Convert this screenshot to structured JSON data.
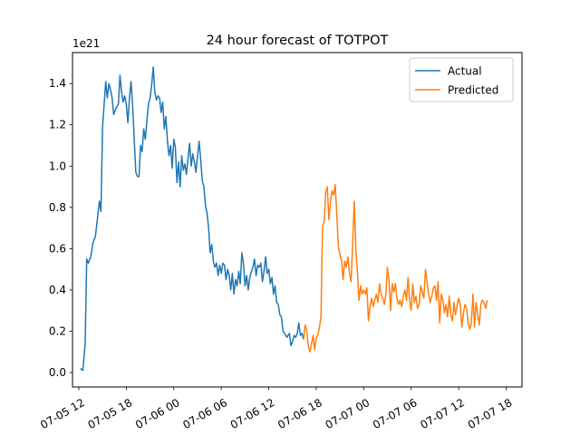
{
  "chart_data": {
    "type": "line",
    "title": "24 hour forecast of TOTPOT",
    "xlabel": "",
    "ylabel": "",
    "y_scale_label": "1e21",
    "x_unit": "hours since 07-05 12",
    "xlim": [
      -0.8,
      56.0
    ],
    "ylim": [
      -0.07,
      1.55
    ],
    "grid": false,
    "legend_position": "top-right",
    "x_ticks": [
      {
        "value": 0,
        "label": "07-05 12"
      },
      {
        "value": 6,
        "label": "07-05 18"
      },
      {
        "value": 12,
        "label": "07-06 00"
      },
      {
        "value": 18,
        "label": "07-06 06"
      },
      {
        "value": 24,
        "label": "07-06 12"
      },
      {
        "value": 30,
        "label": "07-06 18"
      },
      {
        "value": 36,
        "label": "07-07 00"
      },
      {
        "value": 42,
        "label": "07-07 06"
      },
      {
        "value": 48,
        "label": "07-07 12"
      },
      {
        "value": 54,
        "label": "07-07 18"
      }
    ],
    "y_ticks": [
      {
        "value": 0.0,
        "label": "0.0"
      },
      {
        "value": 0.2,
        "label": "0.2"
      },
      {
        "value": 0.4,
        "label": "0.4"
      },
      {
        "value": 0.6,
        "label": "0.6"
      },
      {
        "value": 0.8,
        "label": "0.8"
      },
      {
        "value": 1.0,
        "label": "1.0"
      },
      {
        "value": 1.2,
        "label": "1.2"
      },
      {
        "value": 1.4,
        "label": "1.4"
      }
    ],
    "series": [
      {
        "name": "Actual",
        "color": "#1f77b4",
        "points": [
          [
            0.2,
            0.02
          ],
          [
            0.5,
            0.01
          ],
          [
            0.8,
            0.14
          ],
          [
            1.0,
            0.55
          ],
          [
            1.2,
            0.53
          ],
          [
            1.5,
            0.56
          ],
          [
            1.8,
            0.63
          ],
          [
            2.1,
            0.66
          ],
          [
            2.4,
            0.76
          ],
          [
            2.6,
            0.83
          ],
          [
            2.8,
            0.78
          ],
          [
            3.0,
            1.19
          ],
          [
            3.2,
            1.3
          ],
          [
            3.4,
            1.41
          ],
          [
            3.6,
            1.33
          ],
          [
            3.8,
            1.4
          ],
          [
            4.0,
            1.37
          ],
          [
            4.2,
            1.33
          ],
          [
            4.4,
            1.25
          ],
          [
            4.7,
            1.28
          ],
          [
            5.0,
            1.3
          ],
          [
            5.2,
            1.44
          ],
          [
            5.4,
            1.36
          ],
          [
            5.6,
            1.31
          ],
          [
            5.8,
            1.34
          ],
          [
            6.0,
            1.3
          ],
          [
            6.2,
            1.21
          ],
          [
            6.4,
            1.33
          ],
          [
            6.6,
            1.41
          ],
          [
            6.8,
            1.29
          ],
          [
            7.0,
            1.13
          ],
          [
            7.2,
            0.97
          ],
          [
            7.4,
            0.95
          ],
          [
            7.6,
            0.95
          ],
          [
            7.8,
            1.1
          ],
          [
            8.0,
            1.07
          ],
          [
            8.2,
            1.18
          ],
          [
            8.4,
            1.13
          ],
          [
            8.6,
            1.22
          ],
          [
            8.8,
            1.3
          ],
          [
            9.0,
            1.33
          ],
          [
            9.2,
            1.39
          ],
          [
            9.4,
            1.48
          ],
          [
            9.6,
            1.36
          ],
          [
            9.8,
            1.32
          ],
          [
            10.0,
            1.34
          ],
          [
            10.2,
            1.33
          ],
          [
            10.4,
            1.26
          ],
          [
            10.6,
            1.31
          ],
          [
            10.8,
            1.18
          ],
          [
            11.0,
            1.24
          ],
          [
            11.2,
            1.12
          ],
          [
            11.4,
            1.05
          ],
          [
            11.6,
            1.1
          ],
          [
            11.8,
            0.99
          ],
          [
            12.0,
            1.13
          ],
          [
            12.2,
            1.09
          ],
          [
            12.4,
            0.92
          ],
          [
            12.6,
            1.02
          ],
          [
            12.8,
            0.9
          ],
          [
            13.0,
            1.05
          ],
          [
            13.2,
            0.98
          ],
          [
            13.4,
            1.01
          ],
          [
            13.6,
            0.96
          ],
          [
            13.8,
            1.04
          ],
          [
            14.0,
            1.11
          ],
          [
            14.2,
            1.0
          ],
          [
            14.4,
            1.06
          ],
          [
            14.6,
            1.02
          ],
          [
            14.8,
            0.97
          ],
          [
            15.0,
            1.05
          ],
          [
            15.2,
            1.12
          ],
          [
            15.4,
            1.03
          ],
          [
            15.6,
            0.93
          ],
          [
            15.8,
            0.9
          ],
          [
            16.0,
            0.81
          ],
          [
            16.2,
            0.77
          ],
          [
            16.4,
            0.7
          ],
          [
            16.6,
            0.58
          ],
          [
            16.8,
            0.62
          ],
          [
            17.0,
            0.54
          ],
          [
            17.2,
            0.51
          ],
          [
            17.4,
            0.53
          ],
          [
            17.6,
            0.47
          ],
          [
            17.8,
            0.52
          ],
          [
            18.0,
            0.48
          ],
          [
            18.2,
            0.53
          ],
          [
            18.4,
            0.52
          ],
          [
            18.6,
            0.45
          ],
          [
            18.8,
            0.5
          ],
          [
            19.0,
            0.47
          ],
          [
            19.2,
            0.4
          ],
          [
            19.4,
            0.48
          ],
          [
            19.6,
            0.38
          ],
          [
            19.8,
            0.45
          ],
          [
            20.0,
            0.42
          ],
          [
            20.2,
            0.49
          ],
          [
            20.4,
            0.43
          ],
          [
            20.6,
            0.58
          ],
          [
            20.8,
            0.53
          ],
          [
            21.0,
            0.42
          ],
          [
            21.2,
            0.47
          ],
          [
            21.4,
            0.4
          ],
          [
            21.6,
            0.46
          ],
          [
            21.8,
            0.49
          ],
          [
            22.0,
            0.51
          ],
          [
            22.2,
            0.55
          ],
          [
            22.4,
            0.47
          ],
          [
            22.6,
            0.52
          ],
          [
            22.8,
            0.51
          ],
          [
            23.0,
            0.53
          ],
          [
            23.2,
            0.44
          ],
          [
            23.4,
            0.49
          ],
          [
            23.6,
            0.56
          ],
          [
            23.8,
            0.48
          ],
          [
            24.0,
            0.5
          ],
          [
            24.2,
            0.43
          ],
          [
            24.4,
            0.46
          ],
          [
            24.6,
            0.38
          ],
          [
            24.8,
            0.42
          ],
          [
            25.0,
            0.34
          ],
          [
            25.2,
            0.33
          ],
          [
            25.4,
            0.28
          ],
          [
            25.6,
            0.27
          ],
          [
            25.8,
            0.2
          ],
          [
            26.0,
            0.19
          ],
          [
            26.3,
            0.17
          ],
          [
            26.6,
            0.19
          ],
          [
            26.8,
            0.13
          ],
          [
            27.0,
            0.15
          ],
          [
            27.2,
            0.18
          ],
          [
            27.4,
            0.17
          ],
          [
            27.6,
            0.19
          ],
          [
            27.8,
            0.24
          ],
          [
            28.0,
            0.18
          ],
          [
            28.2,
            0.19
          ],
          [
            28.4,
            0.16
          ]
        ]
      },
      {
        "name": "Predicted",
        "color": "#ff7f0e",
        "points": [
          [
            28.4,
            0.16
          ],
          [
            28.6,
            0.23
          ],
          [
            28.8,
            0.2
          ],
          [
            29.0,
            0.13
          ],
          [
            29.2,
            0.1
          ],
          [
            29.4,
            0.14
          ],
          [
            29.6,
            0.18
          ],
          [
            29.8,
            0.11
          ],
          [
            30.0,
            0.17
          ],
          [
            30.2,
            0.18
          ],
          [
            30.4,
            0.22
          ],
          [
            30.6,
            0.27
          ],
          [
            30.8,
            0.71
          ],
          [
            31.0,
            0.73
          ],
          [
            31.2,
            0.87
          ],
          [
            31.4,
            0.9
          ],
          [
            31.6,
            0.74
          ],
          [
            31.8,
            0.83
          ],
          [
            32.0,
            0.88
          ],
          [
            32.2,
            0.86
          ],
          [
            32.4,
            0.91
          ],
          [
            32.6,
            0.76
          ],
          [
            32.8,
            0.61
          ],
          [
            33.0,
            0.57
          ],
          [
            33.2,
            0.54
          ],
          [
            33.4,
            0.45
          ],
          [
            33.6,
            0.54
          ],
          [
            33.8,
            0.51
          ],
          [
            34.0,
            0.56
          ],
          [
            34.2,
            0.48
          ],
          [
            34.4,
            0.44
          ],
          [
            34.6,
            0.62
          ],
          [
            34.8,
            0.83
          ],
          [
            35.0,
            0.6
          ],
          [
            35.2,
            0.49
          ],
          [
            35.4,
            0.35
          ],
          [
            35.6,
            0.42
          ],
          [
            35.8,
            0.38
          ],
          [
            36.0,
            0.4
          ],
          [
            36.2,
            0.38
          ],
          [
            36.4,
            0.41
          ],
          [
            36.6,
            0.25
          ],
          [
            36.8,
            0.32
          ],
          [
            37.0,
            0.36
          ],
          [
            37.2,
            0.32
          ],
          [
            37.4,
            0.35
          ],
          [
            37.6,
            0.38
          ],
          [
            37.8,
            0.34
          ],
          [
            38.0,
            0.43
          ],
          [
            38.2,
            0.38
          ],
          [
            38.4,
            0.36
          ],
          [
            38.6,
            0.33
          ],
          [
            38.8,
            0.38
          ],
          [
            39.0,
            0.51
          ],
          [
            39.2,
            0.44
          ],
          [
            39.4,
            0.3
          ],
          [
            39.6,
            0.43
          ],
          [
            39.8,
            0.39
          ],
          [
            40.0,
            0.43
          ],
          [
            40.2,
            0.36
          ],
          [
            40.4,
            0.33
          ],
          [
            40.6,
            0.35
          ],
          [
            40.8,
            0.32
          ],
          [
            41.0,
            0.37
          ],
          [
            41.2,
            0.4
          ],
          [
            41.4,
            0.35
          ],
          [
            41.6,
            0.46
          ],
          [
            41.8,
            0.35
          ],
          [
            42.0,
            0.3
          ],
          [
            42.2,
            0.43
          ],
          [
            42.4,
            0.34
          ],
          [
            42.6,
            0.37
          ],
          [
            42.8,
            0.31
          ],
          [
            43.0,
            0.33
          ],
          [
            43.2,
            0.42
          ],
          [
            43.4,
            0.39
          ],
          [
            43.6,
            0.36
          ],
          [
            43.8,
            0.5
          ],
          [
            44.0,
            0.44
          ],
          [
            44.2,
            0.38
          ],
          [
            44.4,
            0.34
          ],
          [
            44.6,
            0.37
          ],
          [
            44.8,
            0.41
          ],
          [
            45.0,
            0.42
          ],
          [
            45.2,
            0.35
          ],
          [
            45.4,
            0.44
          ],
          [
            45.6,
            0.24
          ],
          [
            45.8,
            0.38
          ],
          [
            46.0,
            0.35
          ],
          [
            46.2,
            0.29
          ],
          [
            46.4,
            0.33
          ],
          [
            46.6,
            0.27
          ],
          [
            46.8,
            0.37
          ],
          [
            47.0,
            0.28
          ],
          [
            47.2,
            0.25
          ],
          [
            47.4,
            0.34
          ],
          [
            47.6,
            0.28
          ],
          [
            47.8,
            0.32
          ],
          [
            48.0,
            0.36
          ],
          [
            48.2,
            0.33
          ],
          [
            48.4,
            0.22
          ],
          [
            48.6,
            0.29
          ],
          [
            48.8,
            0.33
          ],
          [
            49.0,
            0.31
          ],
          [
            49.2,
            0.24
          ],
          [
            49.4,
            0.21
          ],
          [
            49.6,
            0.24
          ],
          [
            49.8,
            0.38
          ],
          [
            50.0,
            0.22
          ],
          [
            50.2,
            0.34
          ],
          [
            50.4,
            0.28
          ],
          [
            50.6,
            0.23
          ],
          [
            50.8,
            0.33
          ],
          [
            51.0,
            0.35
          ],
          [
            51.2,
            0.34
          ],
          [
            51.4,
            0.31
          ],
          [
            51.6,
            0.35
          ]
        ]
      }
    ]
  }
}
